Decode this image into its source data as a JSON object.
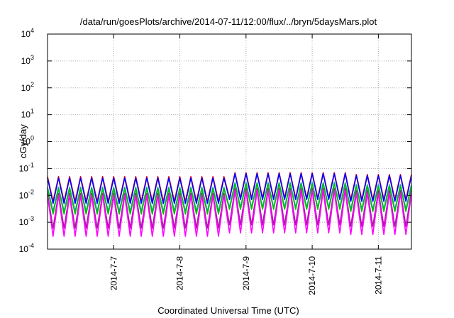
{
  "chart_data": {
    "type": "line",
    "title": "/data/run/goesPlots/archive/2014-07-11/12:00/flux/../bryn/5daysMars.plot",
    "xlabel": "Coordinated Universal Time (UTC)",
    "ylabel": "cGy/day",
    "y_scale": "log",
    "ylim": [
      0.0001,
      10000
    ],
    "y_ticks": [
      {
        "base": "10",
        "exp": "-4",
        "value": 0.0001
      },
      {
        "base": "10",
        "exp": "-3",
        "value": 0.001
      },
      {
        "base": "10",
        "exp": "-2",
        "value": 0.01
      },
      {
        "base": "10",
        "exp": "-1",
        "value": 0.1
      },
      {
        "base": "10",
        "exp": "0",
        "value": 1
      },
      {
        "base": "10",
        "exp": "1",
        "value": 10
      },
      {
        "base": "10",
        "exp": "2",
        "value": 100
      },
      {
        "base": "10",
        "exp": "3",
        "value": 1000
      },
      {
        "base": "10",
        "exp": "4",
        "value": 10000
      }
    ],
    "xlim": [
      "2014-07-06T00:00",
      "2014-07-11T12:00"
    ],
    "x_ticks": [
      {
        "label": "2014-7-7",
        "value": "2014-07-07T00:00"
      },
      {
        "label": "2014-7-8",
        "value": "2014-07-08T00:00"
      },
      {
        "label": "2014-7-9",
        "value": "2014-07-09T00:00"
      },
      {
        "label": "2014-7-10",
        "value": "2014-07-10T00:00"
      },
      {
        "label": "2014-7-11",
        "value": "2014-07-11T00:00"
      }
    ],
    "grid": true,
    "legend": "none",
    "series": [
      {
        "color": "#ff0000",
        "peak": [
          0.05,
          0.05,
          0.05,
          0.07,
          0.07,
          0.06
        ],
        "trough": [
          0.006,
          0.006,
          0.006,
          0.008,
          0.008,
          0.007
        ]
      },
      {
        "color": "#0000ff",
        "peak": [
          0.045,
          0.045,
          0.045,
          0.065,
          0.065,
          0.055
        ],
        "trough": [
          0.005,
          0.005,
          0.005,
          0.007,
          0.007,
          0.006
        ]
      },
      {
        "color": "#00a0a0",
        "peak": [
          0.02,
          0.02,
          0.02,
          0.03,
          0.03,
          0.025
        ],
        "trough": [
          0.0025,
          0.0025,
          0.0025,
          0.0035,
          0.0035,
          0.003
        ]
      },
      {
        "color": "#00c000",
        "peak": [
          0.018,
          0.018,
          0.018,
          0.027,
          0.027,
          0.022
        ],
        "trough": [
          0.002,
          0.002,
          0.002,
          0.003,
          0.003,
          0.0025
        ]
      },
      {
        "color": "#a020a0",
        "peak": [
          0.012,
          0.012,
          0.012,
          0.018,
          0.018,
          0.015
        ],
        "trough": [
          0.0006,
          0.0006,
          0.0006,
          0.0008,
          0.0008,
          0.0007
        ]
      },
      {
        "color": "#ff00ff",
        "peak": [
          0.01,
          0.01,
          0.01,
          0.015,
          0.015,
          0.012
        ],
        "trough": [
          0.0003,
          0.0003,
          0.0003,
          0.0004,
          0.0004,
          0.00035
        ]
      }
    ]
  }
}
